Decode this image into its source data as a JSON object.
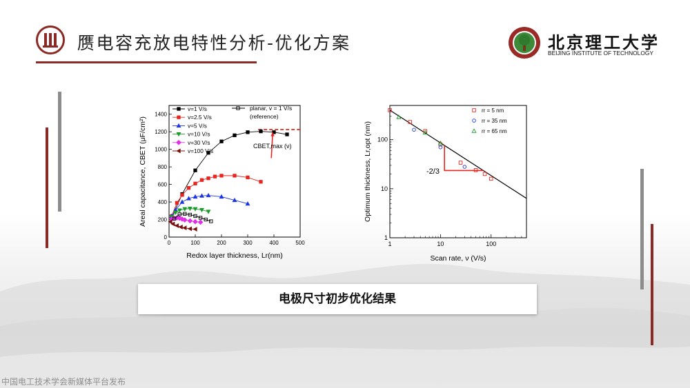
{
  "header": {
    "title": "赝电容充放电特性分析-优化方案",
    "logo_cn": "北京理工大学",
    "logo_en": "BEIJING INSTITUTE OF TECHNOLOGY"
  },
  "caption": "电极尺寸初步优化结果",
  "watermark": "中国电工技术学会新媒体平台发布",
  "colors": {
    "accent": "#8b2a25",
    "gray_bar": "#8c8c8c"
  },
  "chart_data": [
    {
      "type": "line",
      "xlabel": "Redox layer thickness, Lr(nm)",
      "ylabel": "Areal capacitance, CBET (μF/cm²)",
      "xlim": [
        0,
        500
      ],
      "ylim": [
        0,
        1500
      ],
      "x_ticks": [
        "0",
        "100",
        "200",
        "300",
        "400",
        "500"
      ],
      "y_ticks": [
        "0",
        "200",
        "400",
        "600",
        "800",
        "1000",
        "1200",
        "1400"
      ],
      "legend_placement": "top-left",
      "annotation": "CBET,max (ν)",
      "reference_label": "planar, v = 1 V/s",
      "reference_sub": "(reference)",
      "series": [
        {
          "name": "v=1 V/s",
          "color": "#000000",
          "marker": "square",
          "x": [
            10,
            50,
            100,
            150,
            200,
            250,
            300,
            350,
            400,
            450
          ],
          "y": [
            220,
            490,
            760,
            960,
            1090,
            1160,
            1195,
            1205,
            1195,
            1170
          ]
        },
        {
          "name": "v=2.5 V/s",
          "color": "#e8251f",
          "marker": "square",
          "x": [
            10,
            30,
            50,
            75,
            100,
            125,
            150,
            175,
            200,
            250,
            300,
            350
          ],
          "y": [
            240,
            390,
            480,
            560,
            610,
            650,
            670,
            690,
            700,
            700,
            680,
            630
          ]
        },
        {
          "name": "v=5 V/s",
          "color": "#1d35e0",
          "marker": "triangle",
          "x": [
            10,
            25,
            50,
            75,
            100,
            125,
            150,
            200,
            250,
            300
          ],
          "y": [
            240,
            310,
            400,
            440,
            460,
            470,
            475,
            460,
            420,
            380
          ]
        },
        {
          "name": "v=10 V/s",
          "color": "#1a9a2a",
          "marker": "triangle-down",
          "x": [
            10,
            25,
            40,
            60,
            80,
            100,
            125,
            150
          ],
          "y": [
            230,
            280,
            305,
            320,
            325,
            320,
            310,
            290
          ]
        },
        {
          "name": "v=30 V/s",
          "color": "#e22fe6",
          "marker": "diamond",
          "x": [
            10,
            20,
            30,
            40,
            50,
            60,
            80,
            100,
            120
          ],
          "y": [
            205,
            215,
            220,
            215,
            205,
            195,
            185,
            175,
            170
          ]
        },
        {
          "name": "v=100 V/s",
          "color": "#7a1010",
          "marker": "triangle-left",
          "x": [
            5,
            15,
            30,
            45,
            60,
            80,
            100
          ],
          "y": [
            175,
            150,
            130,
            115,
            105,
            95,
            90
          ]
        },
        {
          "name": "planar, v = 1 V/s",
          "color": "#000000",
          "marker": "open-square",
          "x": [
            20,
            40,
            60,
            80,
            100,
            120,
            140,
            160
          ],
          "y": [
            210,
            260,
            265,
            255,
            240,
            220,
            200,
            180
          ]
        }
      ]
    },
    {
      "type": "scatter",
      "xlabel": "Scan rate, ν (V/s)",
      "ylabel": "Optimum thickness, Lr,opt (nm)",
      "x_scale": "log",
      "y_scale": "log",
      "xlim": [
        1,
        500
      ],
      "ylim": [
        1,
        500
      ],
      "x_ticks": [
        "1",
        "10",
        "100"
      ],
      "y_ticks": [
        "1",
        "10",
        "100"
      ],
      "slope_label": "-2/3",
      "legend_placement": "top-right",
      "fit_line": {
        "x": [
          1,
          500
        ],
        "y": [
          400,
          6.35
        ]
      },
      "series": [
        {
          "name": "rr = 5 nm",
          "color": "#e8251f",
          "marker": "open-square",
          "x": [
            1,
            2.5,
            5,
            10,
            25,
            50,
            75,
            100
          ],
          "y": [
            400,
            230,
            150,
            80,
            34,
            24,
            20,
            16
          ]
        },
        {
          "name": "rr = 35 nm",
          "color": "#1d35e0",
          "marker": "open-circle",
          "x": [
            3,
            10,
            30
          ],
          "y": [
            160,
            70,
            28
          ]
        },
        {
          "name": "rr = 65 nm",
          "color": "#1a9a2a",
          "marker": "open-triangle",
          "x": [
            1.5,
            5,
            10
          ],
          "y": [
            290,
            140,
            85
          ]
        }
      ]
    }
  ]
}
